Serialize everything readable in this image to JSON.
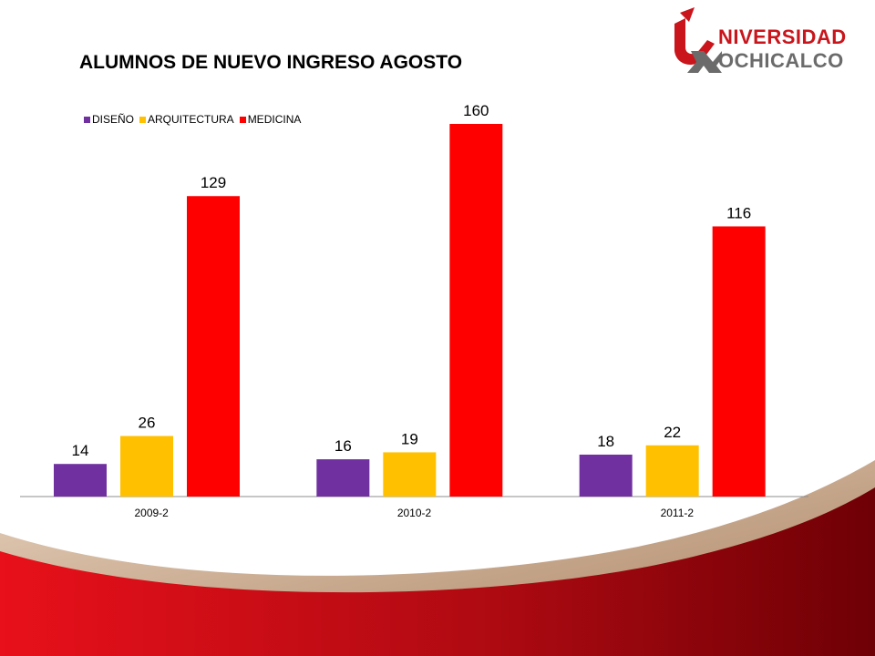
{
  "slide": {
    "title": "ALUMNOS DE NUEVO INGRESO AGOSTO"
  },
  "logo": {
    "line1": "NIVERSIDAD",
    "line2": "OCHICALCO",
    "mark_icon": "u-x-logo-icon",
    "colors": {
      "red": "#c9151b",
      "gray": "#6b6b6b"
    }
  },
  "chart_data": {
    "type": "bar",
    "title": "ALUMNOS DE NUEVO INGRESO AGOSTO",
    "xlabel": "",
    "ylabel": "",
    "categories": [
      "2009-2",
      "2010-2",
      "2011-2"
    ],
    "series": [
      {
        "name": "DISEÑO",
        "color": "#7030a0",
        "values": [
          14,
          16,
          18
        ]
      },
      {
        "name": "ARQUITECTURA",
        "color": "#ffc000",
        "values": [
          26,
          19,
          22
        ]
      },
      {
        "name": "MEDICINA",
        "color": "#ff0000",
        "values": [
          129,
          160,
          116
        ]
      }
    ],
    "ylim": [
      0,
      160
    ],
    "grid": false,
    "legend_position": "top-left",
    "data_labels": true
  }
}
